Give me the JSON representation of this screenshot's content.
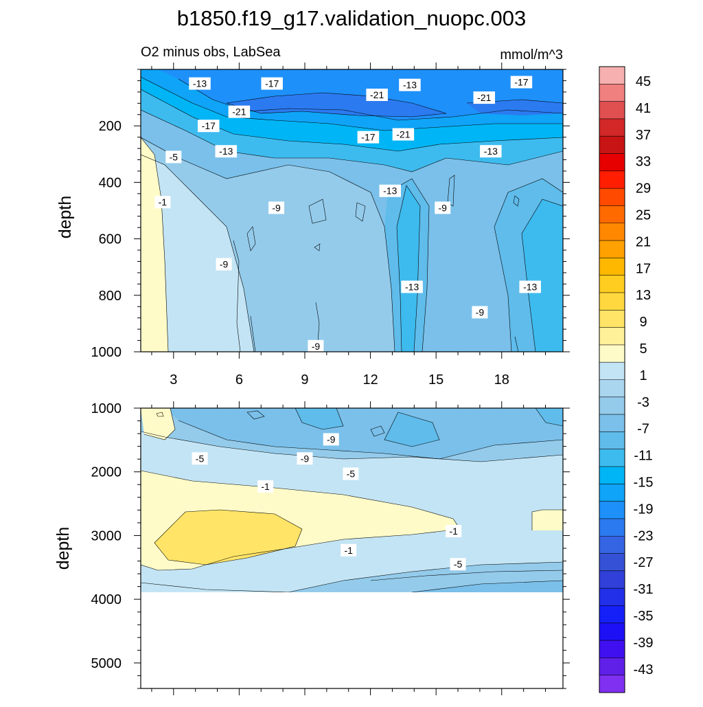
{
  "chart_data": [
    {
      "type": "contour",
      "title": "b1850.f19_g17.validation_nuopc.003",
      "left_label": "O2 minus obs, LabSea",
      "right_label": "mmol/m^3",
      "ylabel": "depth",
      "xlabel": "",
      "x_range": [
        1.5,
        20.8
      ],
      "y_range": [
        0,
        1000
      ],
      "y_reversed": true,
      "x_ticks": [
        3,
        6,
        9,
        12,
        15,
        18
      ],
      "y_ticks": [
        200,
        400,
        600,
        800,
        1000
      ],
      "contour_labels": [
        {
          "text": "-13",
          "x": 4.2,
          "y": 50
        },
        {
          "text": "-17",
          "x": 7.5,
          "y": 50
        },
        {
          "text": "-21",
          "x": 12.3,
          "y": 90
        },
        {
          "text": "-13",
          "x": 13.8,
          "y": 55
        },
        {
          "text": "-17",
          "x": 18.9,
          "y": 45
        },
        {
          "text": "-21",
          "x": 17.2,
          "y": 100
        },
        {
          "text": "-21",
          "x": 6.0,
          "y": 150
        },
        {
          "text": "-17",
          "x": 4.6,
          "y": 200
        },
        {
          "text": "-17",
          "x": 11.9,
          "y": 240
        },
        {
          "text": "-21",
          "x": 13.5,
          "y": 230
        },
        {
          "text": "-13",
          "x": 5.4,
          "y": 290
        },
        {
          "text": "-13",
          "x": 17.5,
          "y": 290
        },
        {
          "text": "-5",
          "x": 3.0,
          "y": 310
        },
        {
          "text": "-13",
          "x": 12.9,
          "y": 430
        },
        {
          "text": "-1",
          "x": 2.5,
          "y": 470
        },
        {
          "text": "-9",
          "x": 7.7,
          "y": 490
        },
        {
          "text": "-9",
          "x": 15.3,
          "y": 490
        },
        {
          "text": "-9",
          "x": 5.3,
          "y": 690
        },
        {
          "text": "-13",
          "x": 13.9,
          "y": 770
        },
        {
          "text": "-13",
          "x": 19.3,
          "y": 770
        },
        {
          "text": "-9",
          "x": 17.0,
          "y": 860
        },
        {
          "text": "-9",
          "x": 9.5,
          "y": 980
        }
      ]
    },
    {
      "type": "contour",
      "ylabel": "depth",
      "x_range": [
        1.5,
        20.8
      ],
      "y_range": [
        1000,
        5400
      ],
      "y_reversed": true,
      "y_ticks": [
        1000,
        2000,
        3000,
        4000,
        5000
      ],
      "data_bottom": 3870,
      "contour_labels": [
        {
          "text": "-9",
          "x": 10.2,
          "y": 1490
        },
        {
          "text": "-9",
          "x": 9.0,
          "y": 1790
        },
        {
          "text": "-5",
          "x": 4.2,
          "y": 1790
        },
        {
          "text": "-5",
          "x": 11.1,
          "y": 2030
        },
        {
          "text": "-1",
          "x": 7.2,
          "y": 2230
        },
        {
          "text": "-1",
          "x": 15.8,
          "y": 2930
        },
        {
          "text": "-1",
          "x": 11.0,
          "y": 3230
        },
        {
          "text": "-5",
          "x": 16.0,
          "y": 3450
        }
      ]
    }
  ],
  "colorbar": {
    "labels": [
      "45",
      "41",
      "37",
      "33",
      "29",
      "25",
      "21",
      "17",
      "13",
      "9",
      "5",
      "1",
      "-3",
      "-7",
      "-11",
      "-15",
      "-19",
      "-23",
      "-27",
      "-31",
      "-35",
      "-39",
      "-43"
    ],
    "colors": [
      "#f7b0b0",
      "#f08080",
      "#e05050",
      "#d22828",
      "#c81414",
      "#e60000",
      "#ff1e00",
      "#ff4a00",
      "#ff6a00",
      "#ff8800",
      "#ffa100",
      "#ffb800",
      "#ffcd20",
      "#ffd840",
      "#ffe467",
      "#fff09a",
      "#fffbc8",
      "#c3e4f4",
      "#aad6ef",
      "#94cbeb",
      "#7ac0ea",
      "#5fbceb",
      "#3dbbef",
      "#00b5f5",
      "#0fa4f7",
      "#1e90fa",
      "#2b7af0",
      "#3565e3",
      "#3552d6",
      "#3040d8",
      "#2230ea",
      "#1520f8",
      "#1e10f5",
      "#4010f0",
      "#6020e8",
      "#8030f0"
    ]
  }
}
